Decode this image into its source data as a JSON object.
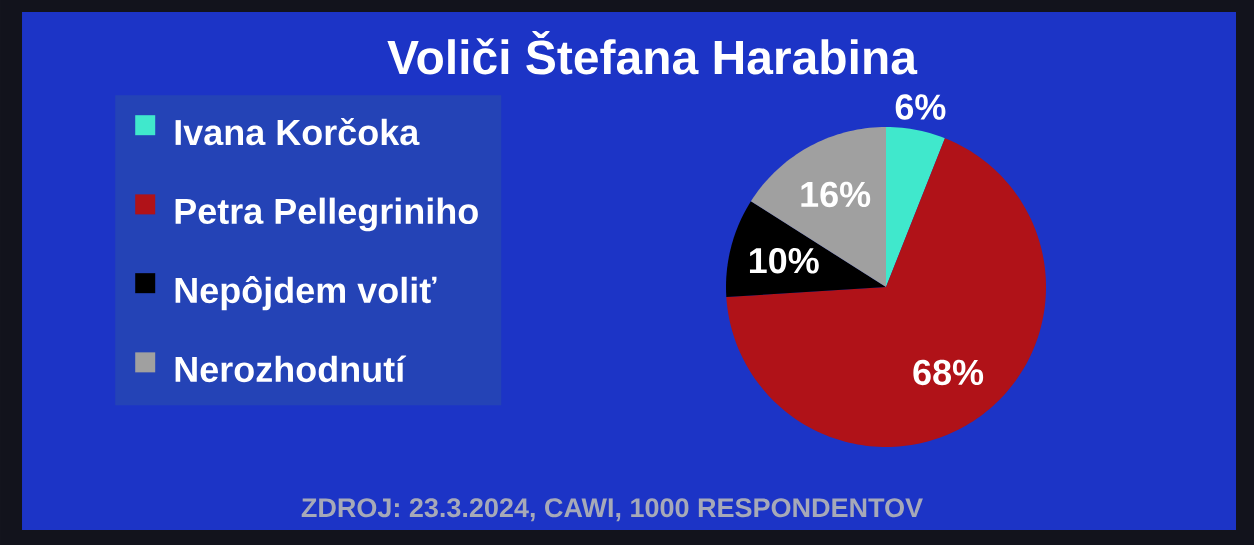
{
  "chart_data": {
    "type": "pie",
    "title": "Voliči Štefana Harabina",
    "categories": [
      "Ivana Korčoka",
      "Petra Pellegriniho",
      "Nepôjdem voliť",
      "Nerozhodnutí"
    ],
    "values": [
      6,
      68,
      10,
      16
    ],
    "colors": [
      "#40e8cc",
      "#b01218",
      "#000000",
      "#a0a0a0"
    ],
    "value_labels": [
      "6%",
      "68%",
      "10%",
      "16%"
    ],
    "legend": "left",
    "annotations": [
      "ZDROJ: 23.3.2024, CAWI, 1000 RESPONDENTOV"
    ]
  }
}
